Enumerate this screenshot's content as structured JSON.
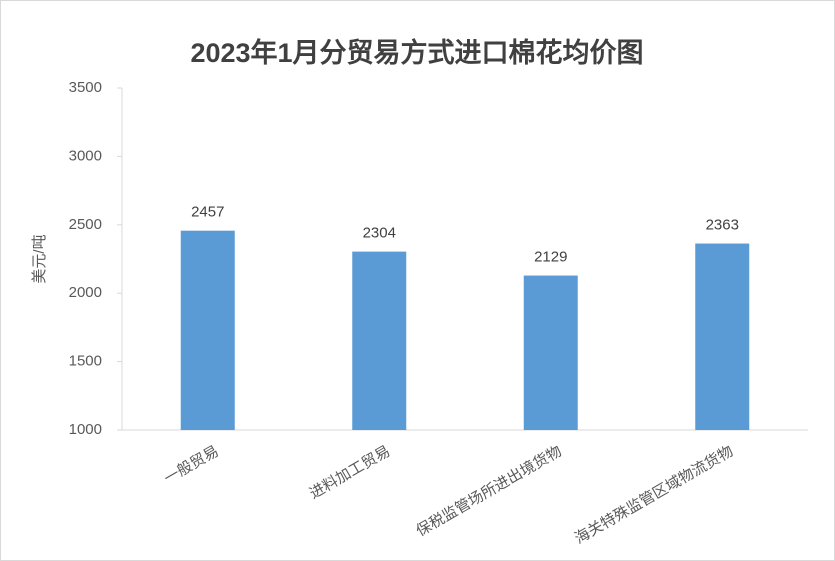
{
  "chart_data": {
    "type": "bar",
    "title": "2023年1月分贸易方式进口棉花均价图",
    "y_label": "美元/吨",
    "categories": [
      "一般贸易",
      "进料加工贸易",
      "保税监管场所进出境货物",
      "海关特殊监管区域物流货物"
    ],
    "values": [
      2457,
      2304,
      2129,
      2363
    ],
    "color": "#5b9bd5",
    "ylim": [
      1000,
      3500
    ],
    "yticks": [
      1000,
      1500,
      2000,
      2500,
      3000,
      3500
    ],
    "grid": false
  }
}
